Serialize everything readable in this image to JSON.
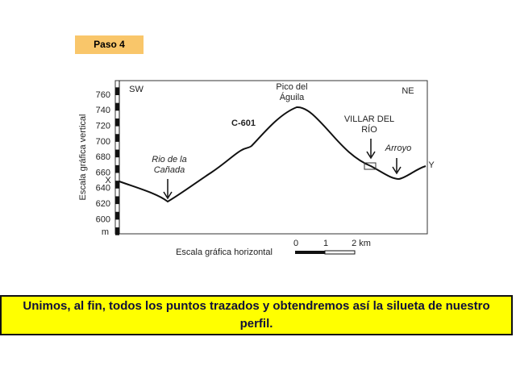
{
  "step_label": "Paso 4",
  "profile": {
    "y_axis_title": "Escala gráfica vertical",
    "y_ticks": [
      "760",
      "740",
      "720",
      "700",
      "680",
      "660",
      "640",
      "620",
      "600"
    ],
    "y_unit": "m",
    "x_axis_title": "Escala gráfica horizontal",
    "scale_labels": [
      "0",
      "1",
      "2 km"
    ],
    "direction_left": "SW",
    "direction_right": "NE",
    "point_start": "X",
    "point_end": "Y",
    "annotations": [
      {
        "lines": [
          "Rio de la",
          "Cañada"
        ]
      },
      {
        "lines": [
          "C-601"
        ]
      },
      {
        "lines": [
          "Pico del",
          "Águila"
        ]
      },
      {
        "lines": [
          "VILLAR DEL",
          "RÍO"
        ]
      },
      {
        "lines": [
          "Arroyo"
        ]
      }
    ]
  },
  "caption": "Unimos, al fin, todos los puntos trazados y obtendremos así la silueta de nuestro perfil."
}
